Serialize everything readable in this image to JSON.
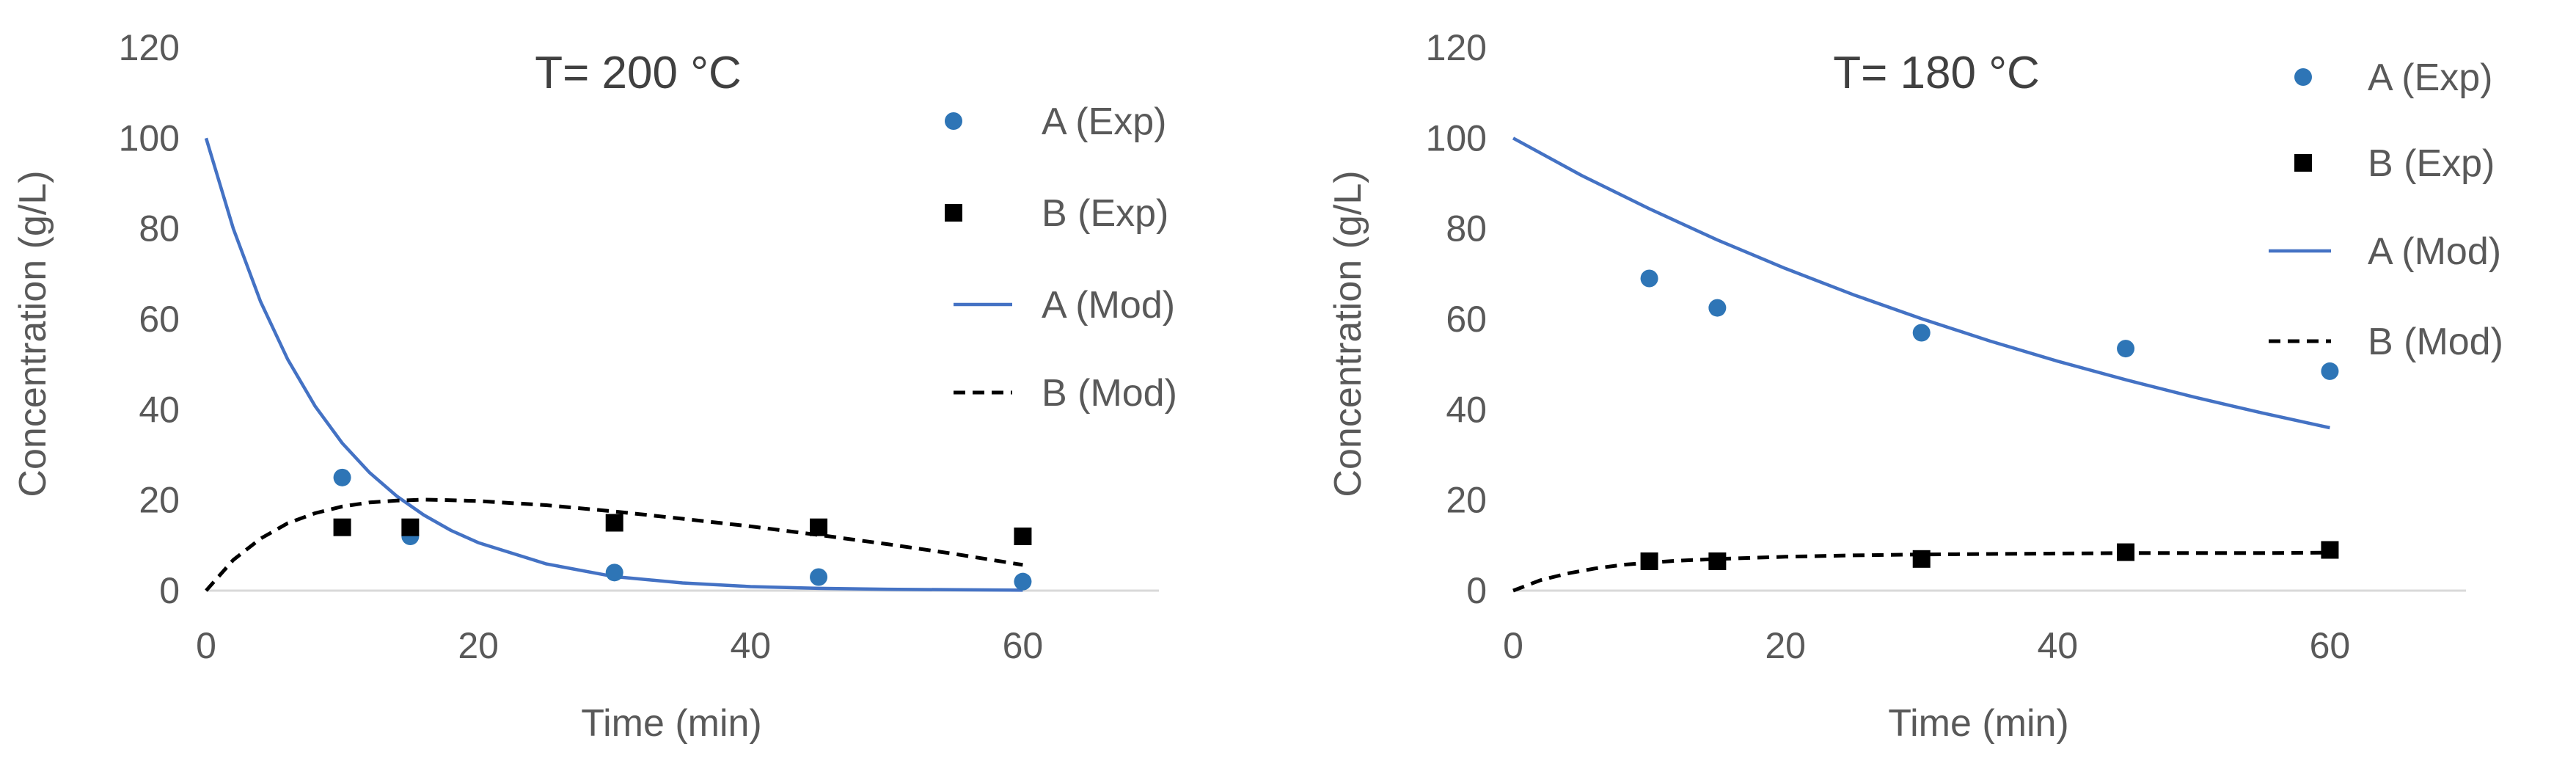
{
  "chart_data": [
    {
      "type": "scatter",
      "title": "T= 200 °C",
      "xlabel": "Time (min)",
      "ylabel": "Concentration  (g/L)",
      "xlim": [
        0,
        70
      ],
      "ylim": [
        0,
        120
      ],
      "xticks": [
        "0",
        "20",
        "40",
        "60"
      ],
      "yticks": [
        "0",
        "20",
        "40",
        "60",
        "80",
        "100",
        "120"
      ],
      "grid": false,
      "legend_position": "top-right",
      "series": [
        {
          "name": "A (Exp)",
          "kind": "points",
          "marker": "circle",
          "color": "#2E75B6",
          "x": [
            10,
            15,
            30,
            45,
            60
          ],
          "y": [
            25,
            12,
            4,
            3,
            2
          ]
        },
        {
          "name": "B (Exp)",
          "kind": "points",
          "marker": "square",
          "color": "#000000",
          "x": [
            10,
            15,
            30,
            45,
            60
          ],
          "y": [
            14,
            14,
            15,
            14,
            12
          ]
        },
        {
          "name": "A (Mod)",
          "kind": "line",
          "dash": "solid",
          "color": "#4472C4",
          "x": [
            0,
            2,
            4,
            6,
            8,
            10,
            12,
            14,
            16,
            18,
            20,
            25,
            30,
            35,
            40,
            45,
            50,
            55,
            60
          ],
          "y": [
            100,
            80.0,
            63.9,
            51.1,
            40.8,
            32.6,
            26.1,
            20.9,
            16.7,
            13.3,
            10.6,
            5.9,
            3.1,
            1.7,
            0.9,
            0.5,
            0.3,
            0.2,
            0.1
          ]
        },
        {
          "name": "B (Mod)",
          "kind": "line",
          "dash": "dashed",
          "color": "#000000",
          "x": [
            0,
            2,
            4,
            6,
            8,
            10,
            12,
            14,
            16,
            18,
            20,
            25,
            30,
            35,
            40,
            45,
            50,
            55,
            60
          ],
          "y": [
            0,
            6.8,
            11.5,
            14.9,
            17.1,
            18.6,
            19.5,
            19.9,
            20.1,
            20.0,
            19.8,
            18.9,
            17.5,
            15.9,
            14.2,
            12.3,
            10.3,
            8.1,
            5.7
          ]
        }
      ]
    },
    {
      "type": "scatter",
      "title": "T= 180 °C",
      "xlabel": "Time (min)",
      "ylabel": "Concentration  (g/L)",
      "xlim": [
        0,
        70
      ],
      "ylim": [
        0,
        120
      ],
      "xticks": [
        "0",
        "20",
        "40",
        "60"
      ],
      "yticks": [
        "0",
        "20",
        "40",
        "60",
        "80",
        "100",
        "120"
      ],
      "grid": false,
      "legend_position": "top-right",
      "series": [
        {
          "name": "A (Exp)",
          "kind": "points",
          "marker": "circle",
          "color": "#2E75B6",
          "x": [
            10,
            15,
            30,
            45,
            60
          ],
          "y": [
            69,
            62.5,
            57,
            53.5,
            48.5
          ]
        },
        {
          "name": "B (Exp)",
          "kind": "points",
          "marker": "square",
          "color": "#000000",
          "x": [
            10,
            15,
            30,
            45,
            60
          ],
          "y": [
            6.5,
            6.5,
            7,
            8.5,
            9
          ]
        },
        {
          "name": "A (Mod)",
          "kind": "line",
          "dash": "solid",
          "color": "#4472C4",
          "x": [
            0,
            5,
            10,
            15,
            20,
            25,
            30,
            35,
            40,
            45,
            50,
            55,
            60
          ],
          "y": [
            100,
            91.8,
            84.4,
            77.5,
            71.2,
            65.4,
            60.1,
            55.2,
            50.7,
            46.6,
            42.8,
            39.3,
            36
          ]
        },
        {
          "name": "B (Mod)",
          "kind": "line",
          "dash": "dashed",
          "color": "#000000",
          "x": [
            0,
            2,
            4,
            6,
            8,
            10,
            12,
            15,
            20,
            25,
            30,
            35,
            40,
            45,
            50,
            55,
            60
          ],
          "y": [
            0,
            2.3,
            3.8,
            4.9,
            5.7,
            6.2,
            6.6,
            7.0,
            7.5,
            7.8,
            8.0,
            8.1,
            8.2,
            8.3,
            8.3,
            8.3,
            8.4
          ]
        }
      ]
    }
  ]
}
